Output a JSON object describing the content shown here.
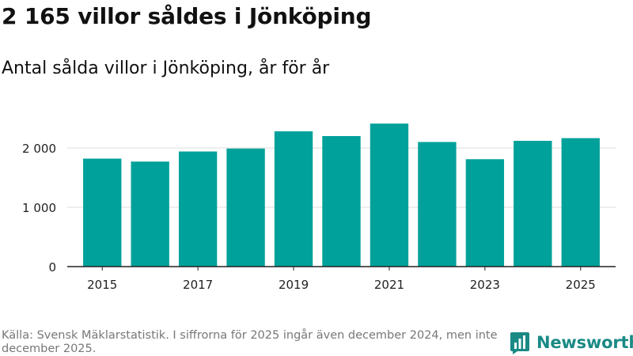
{
  "header": {
    "title": "2 165 villor såldes i Jönköping",
    "subtitle": "Antal sålda villor i Jönköping, år för år"
  },
  "footer": {
    "source": "Källa: Svensk Mäklarstatistik. I siffrorna för 2025 ingår även december 2024, men inte december 2025.",
    "brand": "Newsworthy"
  },
  "colors": {
    "bar": "#00a19a",
    "grid": "#dddddd",
    "axis": "#222222",
    "brand": "#1a8a85"
  },
  "chart_data": {
    "type": "bar",
    "title": "2 165 villor såldes i Jönköping",
    "subtitle": "Antal sålda villor i Jönköping, år för år",
    "categories": [
      "2015",
      "2016",
      "2017",
      "2018",
      "2019",
      "2020",
      "2021",
      "2022",
      "2023",
      "2024",
      "2025"
    ],
    "values": [
      1820,
      1770,
      1940,
      1990,
      2280,
      2200,
      2410,
      2100,
      1810,
      2120,
      2165
    ],
    "x_tick_labels": [
      "2015",
      "2017",
      "2019",
      "2021",
      "2023",
      "2025"
    ],
    "y_ticks": [
      {
        "value": 0,
        "label": "0"
      },
      {
        "value": 1000,
        "label": "1 000"
      },
      {
        "value": 2000,
        "label": "2 000"
      }
    ],
    "ylim": [
      0,
      2600
    ],
    "xlabel": "",
    "ylabel": "",
    "grid": true
  }
}
